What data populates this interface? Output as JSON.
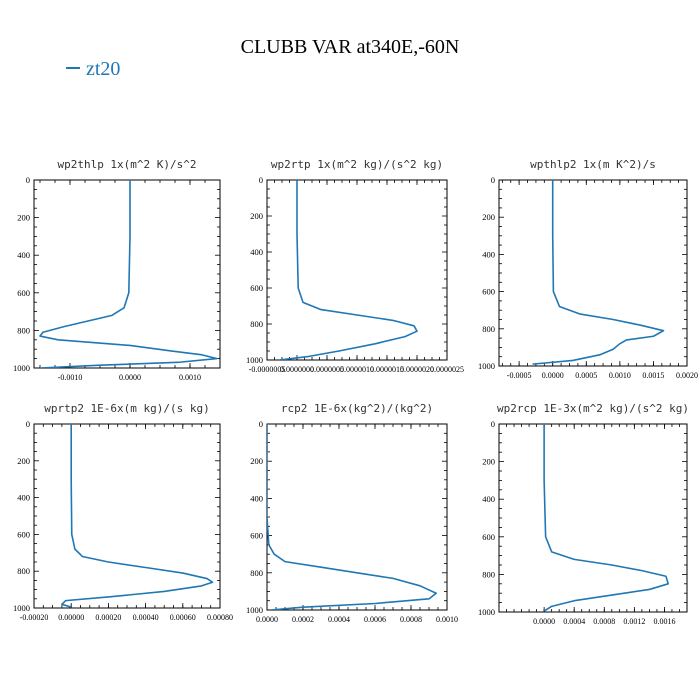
{
  "title": "CLUBB VAR at340E,-60N",
  "legend": {
    "label": "zt20",
    "color": "#1f77b4"
  },
  "chart_data": [
    {
      "type": "line",
      "title": "wp2thlp  1x(m^2 K)/s^2",
      "xlim": [
        -0.0016,
        0.0015
      ],
      "ylim": [
        1000,
        0
      ],
      "xticks": [
        -0.001,
        0,
        0.001
      ],
      "xticklabels": [
        "-0.0010",
        "0.0000",
        "0.0010"
      ],
      "yticks": [
        0,
        200,
        400,
        600,
        800,
        1000
      ],
      "series": [
        {
          "x": [
            0,
            0,
            -2e-05,
            -0.0001,
            -0.0003,
            -0.0007,
            -0.0011,
            -0.00145,
            -0.0015,
            -0.0012,
            0,
            0.0007,
            0.0012,
            0.00145,
            0.0008,
            -0.0005,
            -0.0015
          ],
          "y": [
            0,
            300,
            600,
            680,
            720,
            750,
            780,
            810,
            830,
            850,
            880,
            910,
            930,
            950,
            970,
            985,
            1000
          ]
        }
      ]
    },
    {
      "type": "line",
      "title": "wp2rtp  1x(m^2 kg)/(s^2 kg)",
      "xlim": [
        -5e-07,
        2.5e-06
      ],
      "ylim": [
        1000,
        0
      ],
      "xticks": [
        -5e-07,
        0,
        5e-07,
        1e-06,
        1.5e-06,
        2e-06,
        2.5e-06
      ],
      "xticklabels": [
        "-0.0000005",
        "0.0000000",
        "0.0000005",
        "0.0000010",
        "0.0000015",
        "0.0000020",
        "0.0000025"
      ],
      "yticks": [
        0,
        200,
        400,
        600,
        800,
        1000
      ],
      "series": [
        {
          "x": [
            0,
            0,
            2e-08,
            1e-07,
            4e-07,
            1e-06,
            1.6e-06,
            1.95e-06,
            2e-06,
            1.8e-06,
            1.3e-06,
            7e-07,
            2e-07,
            -3e-07
          ],
          "y": [
            0,
            300,
            600,
            680,
            720,
            750,
            780,
            810,
            840,
            870,
            910,
            950,
            980,
            1000
          ]
        }
      ]
    },
    {
      "type": "line",
      "title": "wpthlp2  1x(m K^2)/s",
      "xlim": [
        -0.0008,
        0.002
      ],
      "ylim": [
        1000,
        0
      ],
      "xticks": [
        -0.0005,
        0,
        0.0005,
        0.001,
        0.0015,
        0.002
      ],
      "xticklabels": [
        "-0.0005",
        "0.0000",
        "0.0005",
        "0.0010",
        "0.0015",
        "0.0020"
      ],
      "yticks": [
        0,
        200,
        400,
        600,
        800,
        1000
      ],
      "series": [
        {
          "x": [
            0,
            0,
            1e-05,
            0.0001,
            0.0004,
            0.0009,
            0.0013,
            0.00165,
            0.0015,
            0.0011,
            0.001,
            0.0009,
            0.0007,
            0.0003,
            -0.0003
          ],
          "y": [
            0,
            300,
            600,
            680,
            720,
            750,
            780,
            810,
            840,
            860,
            880,
            910,
            940,
            970,
            990
          ]
        }
      ]
    },
    {
      "type": "line",
      "title": "wprtp2  1E-6x(m kg)/(s kg)",
      "xlim": [
        -0.0002,
        0.0008
      ],
      "ylim": [
        1000,
        0
      ],
      "xticks": [
        -0.0002,
        0,
        0.0002,
        0.0004,
        0.0006,
        0.0008
      ],
      "xticklabels": [
        "-0.00020",
        "0.00000",
        "0.00020",
        "0.00040",
        "0.00060",
        "0.00080"
      ],
      "yticks": [
        0,
        200,
        400,
        600,
        800,
        1000
      ],
      "series": [
        {
          "x": [
            0,
            0,
            3e-06,
            2e-05,
            6e-05,
            0.0002,
            0.0004,
            0.0006,
            0.00073,
            0.00076,
            0.0007,
            0.0005,
            0.0002,
            -3e-05,
            -5e-05,
            0
          ],
          "y": [
            0,
            300,
            600,
            680,
            720,
            750,
            780,
            810,
            840,
            860,
            880,
            910,
            940,
            960,
            980,
            995
          ]
        }
      ]
    },
    {
      "type": "line",
      "title": "rcp2  1E-6x(kg^2)/(kg^2)",
      "xlim": [
        0,
        0.001
      ],
      "ylim": [
        1000,
        0
      ],
      "xticks": [
        0,
        0.0002,
        0.0004,
        0.0006,
        0.0008,
        0.001
      ],
      "xticklabels": [
        "0.0000",
        "0.0002",
        "0.0004",
        "0.0006",
        "0.0008",
        "0.0010"
      ],
      "yticks": [
        0,
        200,
        400,
        600,
        800,
        1000
      ],
      "series": [
        {
          "x": [
            0,
            0,
            1e-05,
            4e-05,
            0.0001,
            0.0003,
            0.0005,
            0.0007,
            0.00085,
            0.00094,
            0.0009,
            0.0006,
            0.0002,
            2e-05
          ],
          "y": [
            0,
            500,
            650,
            700,
            740,
            770,
            800,
            830,
            870,
            910,
            940,
            965,
            985,
            1000
          ]
        }
      ]
    },
    {
      "type": "line",
      "title": "wp2rcp  1E-3x(m^2 kg)/(s^2 kg)",
      "xlim": [
        -0.0006,
        0.0019
      ],
      "ylim": [
        1000,
        0
      ],
      "xticks": [
        0,
        0.0004,
        0.0008,
        0.0012,
        0.0016
      ],
      "xticklabels": [
        "0.0000",
        "0.0004",
        "0.0008",
        "0.0012",
        "0.0016"
      ],
      "yticks": [
        0,
        200,
        400,
        600,
        800,
        1000
      ],
      "series": [
        {
          "x": [
            0,
            0,
            2e-05,
            0.0001,
            0.0004,
            0.0009,
            0.0013,
            0.00162,
            0.00165,
            0.0014,
            0.0009,
            0.0004,
            0.0001,
            0
          ],
          "y": [
            0,
            300,
            600,
            680,
            720,
            750,
            780,
            810,
            850,
            880,
            910,
            940,
            970,
            995
          ]
        }
      ]
    }
  ]
}
